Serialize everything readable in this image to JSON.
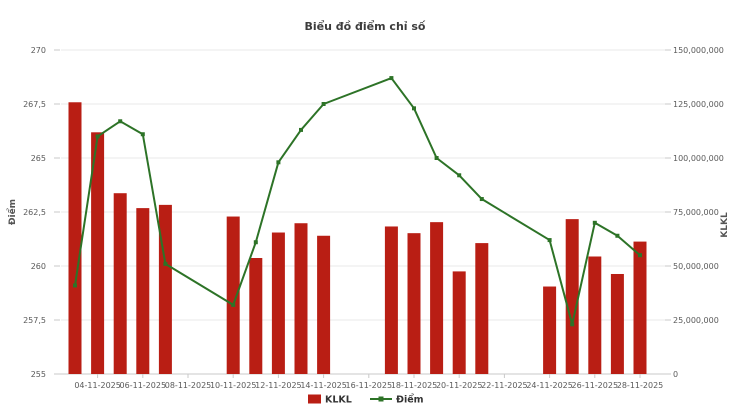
{
  "title": "Biểu đồ điểm chỉ số",
  "colors": {
    "bar": "#B91E14",
    "line": "#2D7327",
    "grid": "#E8E8E8",
    "axis": "#C9C9C9",
    "tick_text": "#5A5A5A",
    "title_text": "#3C3C3C"
  },
  "left_axis": {
    "title": "Điểm",
    "min": 255,
    "max": 270,
    "tick_labels": [
      "255",
      "257,5",
      "260",
      "262,5",
      "265",
      "267,5",
      "270"
    ]
  },
  "right_axis": {
    "title": "KLKL",
    "min": 0,
    "max": 150000000,
    "tick_labels": [
      "0",
      "25,000,000",
      "50,000,000",
      "75,000,000",
      "100,000,000",
      "125,000,000",
      "150,000,000"
    ]
  },
  "x_axis": {
    "tick_labels": [
      "04-11-2025",
      "06-11-2025",
      "08-11-2025",
      "10-11-2025",
      "12-11-2025",
      "14-11-2025",
      "16-11-2025",
      "18-11-2025",
      "20-11-2025",
      "22-11-2025",
      "24-11-2025",
      "26-11-2025",
      "28-11-2025"
    ]
  },
  "legend": [
    {
      "label": "KLKL",
      "type": "bar"
    },
    {
      "label": "Điểm",
      "type": "line"
    }
  ],
  "chart_data": {
    "type": "combo",
    "title": "Biểu đồ điểm chỉ số",
    "categories": [
      "03-11-2025",
      "04-11-2025",
      "05-11-2025",
      "06-11-2025",
      "07-11-2025",
      "10-11-2025",
      "11-11-2025",
      "12-11-2025",
      "13-11-2025",
      "14-11-2025",
      "17-11-2025",
      "18-11-2025",
      "19-11-2025",
      "20-11-2025",
      "21-11-2025",
      "24-11-2025",
      "25-11-2025",
      "26-11-2025",
      "27-11-2025",
      "28-11-2025"
    ],
    "series": [
      {
        "name": "KLKL",
        "type": "bar",
        "axis": "right",
        "color": "#B91E14",
        "values": [
          125800000,
          111900000,
          83700000,
          76800000,
          78300000,
          72900000,
          53700000,
          65500000,
          69800000,
          64000000,
          68300000,
          65200000,
          70300000,
          47500000,
          60600000,
          40500000,
          71700000,
          54400000,
          46300000,
          61300000
        ]
      },
      {
        "name": "Điểm",
        "type": "line",
        "axis": "left",
        "color": "#2D7327",
        "values": [
          259.1,
          266.0,
          266.7,
          266.1,
          260.1,
          258.2,
          261.1,
          264.8,
          266.3,
          267.5,
          268.7,
          267.3,
          265.0,
          264.2,
          263.1,
          261.2,
          257.3,
          262.0,
          261.4,
          260.5
        ]
      }
    ],
    "left_axis_range": [
      255,
      270
    ],
    "right_axis_range": [
      0,
      150000000
    ],
    "grid": "horizontal-only",
    "legend_position": "bottom-center",
    "x_axis_type": "datetime-with-weekend-gaps"
  }
}
